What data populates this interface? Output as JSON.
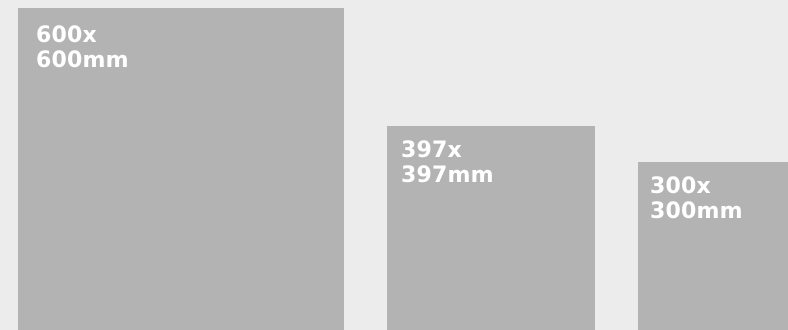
{
  "colors": {
    "background": "#ebeceb",
    "tile": "#b2b3b2",
    "label": "#ffffff"
  },
  "tiles": [
    {
      "line1": "600x",
      "line2": "600mm"
    },
    {
      "line1": "397x",
      "line2": "397mm"
    },
    {
      "line1": "300x",
      "line2": "300mm"
    }
  ]
}
